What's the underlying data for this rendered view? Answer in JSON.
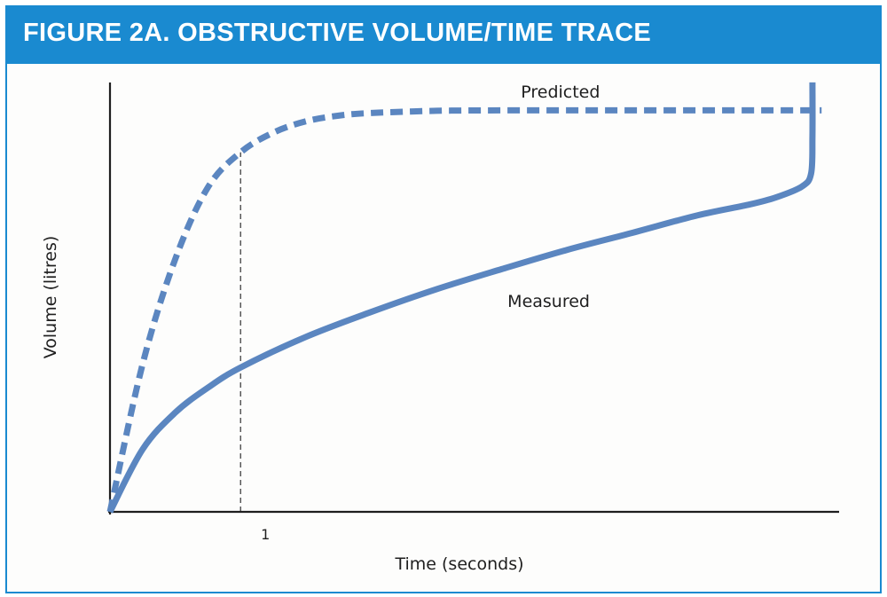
{
  "header": {
    "title": "FIGURE 2A. OBSTRUCTIVE VOLUME/TIME TRACE"
  },
  "colors": {
    "header_bg": "#1a8ad0",
    "curve": "#5b86c0",
    "axis": "#1f1f1f"
  },
  "chart_data": {
    "type": "line",
    "title": "FIGURE 2A. OBSTRUCTIVE VOLUME/TIME TRACE",
    "xlabel": "Time (seconds)",
    "ylabel": "Volume (litres)",
    "x_ticks": [
      {
        "value": 1,
        "label": "1"
      }
    ],
    "xlim": [
      0,
      5.4
    ],
    "ylim": [
      0,
      1.0
    ],
    "grid": false,
    "marker_line_at_x": 1,
    "series": [
      {
        "name": "Predicted",
        "style": "dashed",
        "x": [
          0,
          0.25,
          0.5,
          0.75,
          1.0,
          1.25,
          1.5,
          1.75,
          2.0,
          2.5,
          3.0,
          3.5,
          4.0,
          4.5,
          5.0,
          5.45
        ],
        "y": [
          0,
          0.338,
          0.578,
          0.742,
          0.822,
          0.867,
          0.893,
          0.906,
          0.912,
          0.917,
          0.918,
          0.918,
          0.918,
          0.918,
          0.918,
          0.918
        ]
      },
      {
        "name": "Measured",
        "style": "solid",
        "x": [
          0,
          0.25,
          0.5,
          0.75,
          1.0,
          1.5,
          2.0,
          2.5,
          3.0,
          3.5,
          4.0,
          4.5,
          4.9,
          5.1,
          5.3,
          5.37,
          5.38,
          5.38
        ],
        "y": [
          0,
          0.143,
          0.227,
          0.284,
          0.33,
          0.4,
          0.457,
          0.509,
          0.555,
          0.599,
          0.638,
          0.678,
          0.703,
          0.719,
          0.744,
          0.774,
          0.859,
          0.982
        ]
      }
    ]
  }
}
